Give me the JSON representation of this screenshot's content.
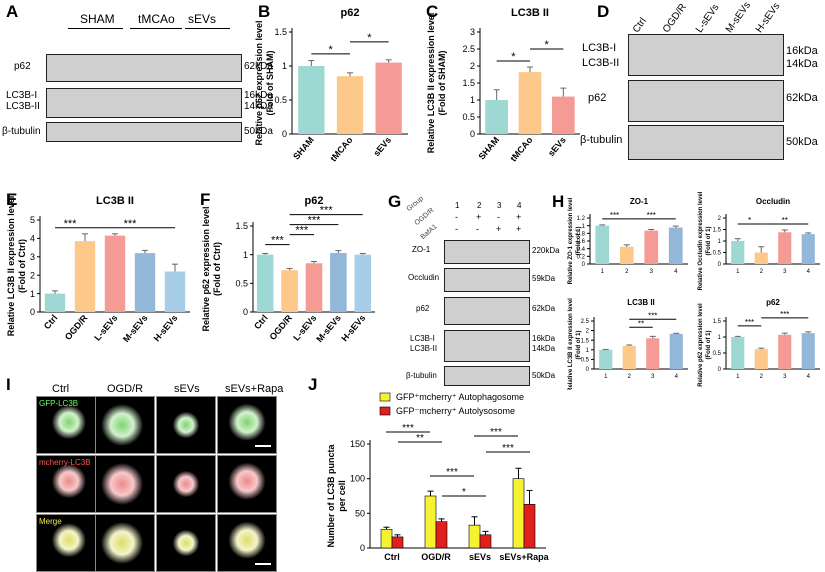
{
  "panels": {
    "A": "A",
    "B": "B",
    "C": "C",
    "D": "D",
    "E": "E",
    "F": "F",
    "G": "G",
    "H": "H",
    "I": "I",
    "J": "J"
  },
  "blotA": {
    "groups": [
      "SHAM",
      "tMCAo",
      "sEVs"
    ],
    "rows": [
      "p62",
      "LC3B-I",
      "LC3B-II",
      "β-tubulin"
    ],
    "kda": [
      "62kDa",
      "16kDa",
      "14kDa",
      "50kDa"
    ]
  },
  "blotD": {
    "groups": [
      "Ctrl",
      "OGD/R",
      "L-sEVs",
      "M-sEVs",
      "H-sEVs"
    ],
    "rows": [
      "LC3B-I",
      "LC3B-II",
      "p62",
      "β-tubulin"
    ],
    "kda": [
      "16kDa",
      "14kDa",
      "62kDa",
      "50kDa"
    ]
  },
  "blotG": {
    "rowlabels": [
      "Group",
      "OGD/R",
      "BafA1"
    ],
    "lanes": [
      "1",
      "2",
      "3",
      "4"
    ],
    "ogdr": [
      "-",
      "+",
      "-",
      "+"
    ],
    "bafa1": [
      "-",
      "-",
      "+",
      "+"
    ],
    "rows": [
      "ZO-1",
      "Occludin",
      "p62",
      "LC3B-I",
      "LC3B-II",
      "β-tubulin"
    ],
    "kda": [
      "220kDa",
      "59kDa",
      "62kDa",
      "16kDa",
      "14kDa",
      "50kDa"
    ]
  },
  "imaging": {
    "cols": [
      "Ctrl",
      "OGD/R",
      "sEVs",
      "sEVs+Rapa"
    ],
    "rows": [
      "GFP-LC3B",
      "mcherry-LC3B",
      "Merge"
    ]
  },
  "chart_data": [
    {
      "id": "B",
      "type": "bar",
      "title": "p62",
      "ylabel": "Relative p62 expression level\n(Fold of SHAM)",
      "categories": [
        "SHAM",
        "tMCAo",
        "sEVs"
      ],
      "values": [
        1.0,
        0.85,
        1.05
      ],
      "errors": [
        0.08,
        0.05,
        0.04
      ],
      "ylim": [
        0,
        1.5
      ],
      "yticks": [
        0.0,
        0.5,
        1.0,
        1.5
      ],
      "colors": [
        "#9dd9d2",
        "#fcc98a",
        "#f49b96"
      ],
      "sig": [
        {
          "a": 0,
          "b": 1,
          "label": "*",
          "lvl": 0
        },
        {
          "a": 1,
          "b": 2,
          "label": "*",
          "lvl": 1
        }
      ]
    },
    {
      "id": "C",
      "type": "bar",
      "title": "LC3B II",
      "ylabel": "Relative LC3B II expression level\n(Fold of SHAM)",
      "categories": [
        "SHAM",
        "tMCAo",
        "sEVs"
      ],
      "values": [
        1.0,
        1.82,
        1.1
      ],
      "errors": [
        0.3,
        0.15,
        0.25
      ],
      "ylim": [
        0,
        3.0
      ],
      "yticks": [
        0.0,
        0.5,
        1.0,
        1.5,
        2.0,
        2.5,
        3.0
      ],
      "colors": [
        "#9dd9d2",
        "#fcc98a",
        "#f49b96"
      ],
      "sig": [
        {
          "a": 0,
          "b": 1,
          "label": "*",
          "lvl": 0
        },
        {
          "a": 1,
          "b": 2,
          "label": "*",
          "lvl": 1
        }
      ]
    },
    {
      "id": "E",
      "type": "bar",
      "title": "LC3B II",
      "ylabel": "Relative LC3B II expression level\n(Fold of Ctrl)",
      "categories": [
        "Ctrl",
        "OGD/R",
        "L-sEVs",
        "M-sEVs",
        "H-sEVs"
      ],
      "values": [
        1.0,
        3.85,
        4.15,
        3.2,
        2.2
      ],
      "errors": [
        0.15,
        0.4,
        0.1,
        0.15,
        0.4
      ],
      "ylim": [
        0,
        5
      ],
      "yticks": [
        0,
        1,
        2,
        3,
        4,
        5
      ],
      "colors": [
        "#9dd9d2",
        "#fcc98a",
        "#f49b96",
        "#93b7d9",
        "#a7cde8"
      ],
      "sig": [
        {
          "a": 0,
          "b": 1,
          "label": "***",
          "lvl": 0
        },
        {
          "a": 1,
          "b": 4,
          "label": "***",
          "lvl": 0
        }
      ]
    },
    {
      "id": "F",
      "type": "bar",
      "title": "p62",
      "ylabel": "Relative p62 expression level\n(Fold of Ctrl)",
      "categories": [
        "Ctrl",
        "OGD/R",
        "L-sEVs",
        "M-sEVs",
        "H-sEVs"
      ],
      "values": [
        1.0,
        0.73,
        0.85,
        1.03,
        1.0
      ],
      "errors": [
        0.02,
        0.03,
        0.03,
        0.04,
        0.02
      ],
      "ylim": [
        0,
        1.5
      ],
      "yticks": [
        0.0,
        0.5,
        1.0,
        1.5
      ],
      "colors": [
        "#9dd9d2",
        "#fcc98a",
        "#f49b96",
        "#93b7d9",
        "#a7cde8"
      ],
      "sig": [
        {
          "a": 0,
          "b": 1,
          "label": "***",
          "lvl": 0
        },
        {
          "a": 1,
          "b": 2,
          "label": "***",
          "lvl": 1
        },
        {
          "a": 1,
          "b": 3,
          "label": "***",
          "lvl": 2
        },
        {
          "a": 1,
          "b": 4,
          "label": "***",
          "lvl": 3
        }
      ]
    },
    {
      "id": "H1",
      "type": "bar",
      "title": "ZO-1",
      "ylabel": "Relative ZO-1 expression level\n(Fold of 1)",
      "categories": [
        "1",
        "2",
        "3",
        "4"
      ],
      "values": [
        1.0,
        0.45,
        0.87,
        0.95
      ],
      "errors": [
        0.02,
        0.05,
        0.03,
        0.04
      ],
      "ylim": [
        0,
        1.2
      ],
      "yticks": [
        0.0,
        0.2,
        0.4,
        0.6,
        0.8,
        1.0,
        1.2
      ],
      "colors": [
        "#9dd9d2",
        "#fcc98a",
        "#f49b96",
        "#93b7d9"
      ],
      "sig": [
        {
          "a": 0,
          "b": 1,
          "label": "***",
          "lvl": 0
        },
        {
          "a": 1,
          "b": 3,
          "label": "***",
          "lvl": 0
        }
      ]
    },
    {
      "id": "H2",
      "type": "bar",
      "title": "Occludin",
      "ylabel": "Relative Occludin expression level\n(Fold of 1)",
      "categories": [
        "1",
        "2",
        "3",
        "4"
      ],
      "values": [
        1.0,
        0.5,
        1.38,
        1.3
      ],
      "errors": [
        0.1,
        0.25,
        0.1,
        0.05
      ],
      "ylim": [
        0,
        2.0
      ],
      "yticks": [
        0.0,
        0.5,
        1.0,
        1.5,
        2.0
      ],
      "colors": [
        "#9dd9d2",
        "#fcc98a",
        "#f49b96",
        "#93b7d9"
      ],
      "sig": [
        {
          "a": 0,
          "b": 1,
          "label": "*",
          "lvl": 0
        },
        {
          "a": 1,
          "b": 3,
          "label": "**",
          "lvl": 0
        }
      ]
    },
    {
      "id": "H3",
      "type": "bar",
      "title": "LC3B II",
      "ylabel": "Relative LC3B II expression level\n(Fold of 1)",
      "categories": [
        "1",
        "2",
        "3",
        "4"
      ],
      "values": [
        1.0,
        1.2,
        1.6,
        1.83
      ],
      "errors": [
        0.02,
        0.05,
        0.1,
        0.03
      ],
      "ylim": [
        0,
        2.5
      ],
      "yticks": [
        0.0,
        0.5,
        1.0,
        1.5,
        2.0,
        2.5
      ],
      "colors": [
        "#9dd9d2",
        "#fcc98a",
        "#f49b96",
        "#93b7d9"
      ],
      "sig": [
        {
          "a": 1,
          "b": 2,
          "label": "**",
          "lvl": 0
        },
        {
          "a": 1,
          "b": 3,
          "label": "***",
          "lvl": 1
        }
      ]
    },
    {
      "id": "H4",
      "type": "bar",
      "title": "p62",
      "ylabel": "Relative p62 expression level\n(Fold of 1)",
      "categories": [
        "1",
        "2",
        "3",
        "4"
      ],
      "values": [
        1.0,
        0.62,
        1.07,
        1.12
      ],
      "errors": [
        0.02,
        0.03,
        0.05,
        0.04
      ],
      "ylim": [
        0,
        1.5
      ],
      "yticks": [
        0.0,
        0.5,
        1.0,
        1.5
      ],
      "colors": [
        "#9dd9d2",
        "#fcc98a",
        "#f49b96",
        "#93b7d9"
      ],
      "sig": [
        {
          "a": 0,
          "b": 1,
          "label": "***",
          "lvl": 0
        },
        {
          "a": 1,
          "b": 3,
          "label": "***",
          "lvl": 1
        }
      ]
    },
    {
      "id": "J",
      "type": "bar",
      "ylabel": "Number of LC3B puncta\nper cell",
      "categories": [
        "Ctrl",
        "OGD/R",
        "sEVs",
        "sEVs+Rapa"
      ],
      "series": [
        {
          "name": "GFP⁺mcherry⁺ Autophagosome",
          "color": "#f5f230",
          "values": [
            27,
            75,
            33,
            100
          ],
          "errors": [
            3,
            7,
            12,
            15
          ]
        },
        {
          "name": "GFP⁻mcherry⁺ Autolysosome",
          "color": "#e0201c",
          "values": [
            16,
            38,
            19,
            63
          ],
          "errors": [
            3,
            4,
            5,
            20
          ]
        }
      ],
      "ylim": [
        0,
        150
      ],
      "yticks": [
        0,
        50,
        100,
        150
      ],
      "legend": "top"
    }
  ]
}
